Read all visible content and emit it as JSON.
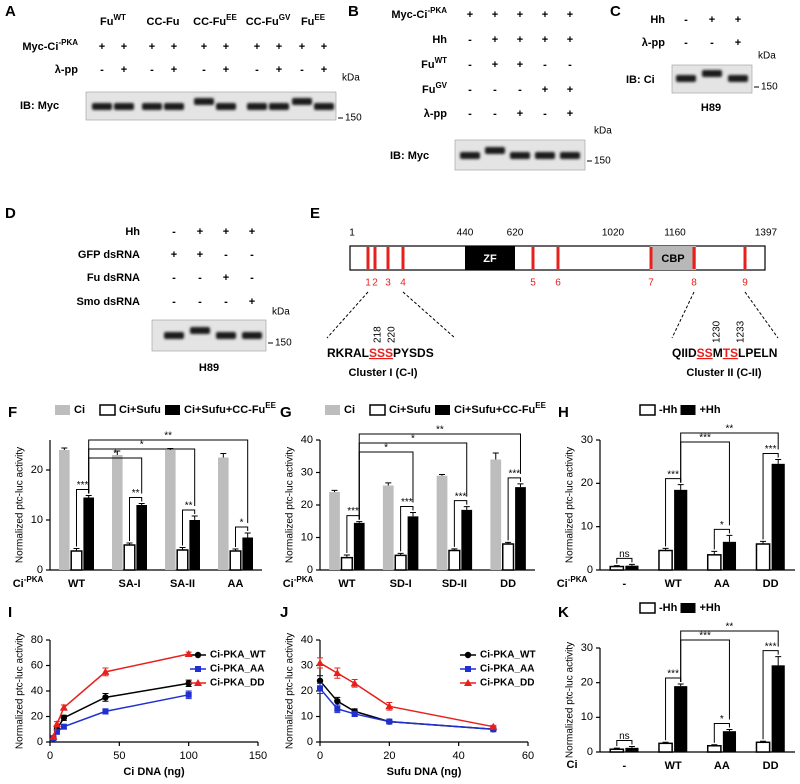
{
  "blots": [
    {
      "panel": "A",
      "columns": [
        {
          "text": "Fu",
          "sup": "WT"
        },
        {
          "text": "CC-Fu"
        },
        {
          "text": "CC-Fu",
          "sup": "EE"
        },
        {
          "text": "CC-Fu",
          "sup": "GV"
        },
        {
          "text": "Fu",
          "sup": "EE"
        }
      ],
      "rows": [
        {
          "text": "Myc-Ci",
          "sup": "-PKA",
          "signs": [
            "+",
            "+",
            "+",
            "+",
            "+",
            "+",
            "+",
            "+",
            "+",
            "+"
          ]
        },
        {
          "text": "λ-pp",
          "signs": [
            "-",
            "+",
            "-",
            "+",
            "-",
            "+",
            "-",
            "+",
            "-",
            "+"
          ]
        }
      ],
      "ib": "IB: Myc",
      "kda": "kDa",
      "marker": 150
    },
    {
      "panel": "B",
      "rows": [
        {
          "text": "Myc-Ci",
          "sup": "-PKA",
          "signs": [
            "+",
            "+",
            "+",
            "+",
            "+"
          ]
        },
        {
          "text": "Hh",
          "signs": [
            "-",
            "+",
            "+",
            "+",
            "+"
          ]
        },
        {
          "text": "Fu",
          "sup": "WT",
          "signs": [
            "-",
            "+",
            "+",
            "-",
            "-"
          ]
        },
        {
          "text": "Fu",
          "sup": "GV",
          "signs": [
            "-",
            "-",
            "-",
            "+",
            "+"
          ]
        },
        {
          "text": "λ-pp",
          "signs": [
            "-",
            "-",
            "+",
            "-",
            "+"
          ]
        }
      ],
      "ib": "IB: Myc",
      "kda": "kDa",
      "marker": 150
    },
    {
      "panel": "C",
      "rows": [
        {
          "text": "Hh",
          "signs": [
            "-",
            "+",
            "+"
          ]
        },
        {
          "text": "λ-pp",
          "signs": [
            "-",
            "-",
            "+"
          ]
        }
      ],
      "ib": "IB: Ci",
      "kda": "kDa",
      "marker": 150,
      "drug": "H89"
    },
    {
      "panel": "D",
      "rows": [
        {
          "text": "Hh",
          "signs": [
            "-",
            "+",
            "+",
            "+"
          ]
        },
        {
          "text": "GFP dsRNA",
          "signs": [
            "+",
            "+",
            "-",
            "-"
          ]
        },
        {
          "text": "Fu dsRNA",
          "signs": [
            "-",
            "-",
            "+",
            "-"
          ]
        },
        {
          "text": "Smo dsRNA",
          "signs": [
            "-",
            "-",
            "-",
            "+"
          ]
        }
      ],
      "kda": "kDa",
      "marker": 150,
      "drug": "H89"
    }
  ],
  "domain_map": {
    "panel": "E",
    "positions": [
      1,
      440,
      620,
      1020,
      1160,
      1397
    ],
    "domains": [
      "ZF",
      "CBP"
    ],
    "sites": [
      "1",
      "2",
      "3",
      "4",
      "5",
      "6",
      "7",
      "8",
      "9"
    ],
    "clusters": [
      {
        "residues": [
          218,
          220
        ],
        "sequence": [
          {
            "text": "RKRAL"
          },
          {
            "text": "SSS",
            "highlight": true
          },
          {
            "text": "PYSDS"
          }
        ],
        "name": "Cluster I (C-I)"
      },
      {
        "residues": [
          1230,
          1233
        ],
        "sequence": [
          {
            "text": "QIID"
          },
          {
            "text": "SS",
            "highlight": true
          },
          {
            "text": "M"
          },
          {
            "text": "TS",
            "highlight": true
          },
          {
            "text": "LPELN"
          }
        ],
        "name": "Cluster II (C-II)"
      }
    ]
  },
  "chart_data": [
    {
      "type": "bar",
      "panel": "F",
      "ylabel": "Normalized ptc-luc activity",
      "category_label": {
        "text": "Ci",
        "sup": "-PKA"
      },
      "categories": [
        "WT",
        "SA-I",
        "SA-II",
        "AA"
      ],
      "series": [
        {
          "name": "Ci",
          "color": "#bdbdbd",
          "values": [
            24,
            23,
            24,
            22.5
          ],
          "errors": [
            0.4,
            0.8,
            0.3,
            0.8
          ]
        },
        {
          "name": "Ci+Sufu",
          "color": "#ffffff",
          "values": [
            3.8,
            5,
            4,
            3.8
          ],
          "errors": [
            0.5,
            0.4,
            0.5,
            0.4
          ]
        },
        {
          "name": "Ci+Sufu+CC-Fu",
          "sup": "EE",
          "color": "#000000",
          "values": [
            14.5,
            13,
            10,
            6.5
          ],
          "errors": [
            0.4,
            0.3,
            0.8,
            0.9
          ]
        }
      ],
      "ylim": [
        0,
        26
      ],
      "yticks": [
        0,
        10,
        20
      ],
      "significance": {
        "within": [
          "***",
          "**",
          "**",
          "*"
        ],
        "between": [
          "*",
          "*",
          "**"
        ]
      }
    },
    {
      "type": "bar",
      "panel": "G",
      "ylabel": "Normalized ptc-luc activity",
      "category_label": {
        "text": "Ci",
        "sup": "-PKA"
      },
      "categories": [
        "WT",
        "SD-I",
        "SD-II",
        "DD"
      ],
      "series": [
        {
          "name": "Ci",
          "color": "#bdbdbd",
          "values": [
            24,
            26,
            29,
            34
          ],
          "errors": [
            0.5,
            0.8,
            0.4,
            2
          ]
        },
        {
          "name": "Ci+Sufu",
          "color": "#ffffff",
          "values": [
            3.8,
            4.5,
            6,
            8
          ],
          "errors": [
            0.8,
            0.6,
            0.5,
            0.5
          ]
        },
        {
          "name": "Ci+Sufu+CC-Fu",
          "sup": "EE",
          "color": "#000000",
          "values": [
            14.5,
            16.5,
            18.5,
            25.5
          ],
          "errors": [
            0.4,
            1.2,
            1,
            1
          ]
        }
      ],
      "ylim": [
        0,
        40
      ],
      "yticks": [
        0,
        10,
        20,
        30,
        40
      ],
      "significance": {
        "within": [
          "***",
          "***",
          "***",
          "***"
        ],
        "between": [
          "*",
          "*",
          "**"
        ]
      }
    },
    {
      "type": "bar",
      "panel": "H",
      "ylabel": "Normalized ptc-luc activity",
      "category_label": {
        "text": "Ci",
        "sup": "-PKA"
      },
      "categories": [
        "-",
        "WT",
        "AA",
        "DD"
      ],
      "series": [
        {
          "name": "-Hh",
          "color": "#ffffff",
          "values": [
            0.8,
            4.5,
            3.5,
            6
          ],
          "errors": [
            0.2,
            0.5,
            0.8,
            0.6
          ]
        },
        {
          "name": "+Hh",
          "color": "#000000",
          "values": [
            1,
            18.5,
            6.5,
            24.5
          ],
          "errors": [
            0.3,
            1.2,
            1.5,
            1
          ]
        }
      ],
      "ylim": [
        0,
        30
      ],
      "yticks": [
        0,
        10,
        20,
        30
      ],
      "significance": {
        "within": [
          "ns",
          "***",
          "*",
          "***"
        ],
        "between": [
          "***",
          "**"
        ]
      }
    },
    {
      "type": "line",
      "panel": "I",
      "ylabel": "Normalized ptc-luc activity",
      "xlabel": "Ci DNA (ng)",
      "x": [
        2.5,
        5,
        10,
        40,
        100
      ],
      "series": [
        {
          "name": "Ci-PKA_WT",
          "color": "#000000",
          "marker": "circle",
          "values": [
            3,
            10,
            19,
            35,
            46
          ],
          "errors": [
            1,
            2,
            2,
            3,
            2.5
          ]
        },
        {
          "name": "Ci-PKA_AA",
          "color": "#1f2fd0",
          "marker": "square",
          "values": [
            3,
            8,
            12,
            24,
            37
          ],
          "errors": [
            1,
            1.5,
            1.5,
            2,
            3
          ]
        },
        {
          "name": "Ci-PKA_DD",
          "color": "#e8201c",
          "marker": "triangle",
          "values": [
            4,
            14,
            27,
            55,
            69
          ],
          "errors": [
            1,
            2,
            2,
            3,
            1.5
          ]
        }
      ],
      "xlim": [
        0,
        150
      ],
      "xticks": [
        0,
        50,
        100,
        150
      ],
      "ylim": [
        0,
        80
      ],
      "yticks": [
        0,
        20,
        40,
        60,
        80
      ]
    },
    {
      "type": "line",
      "panel": "J",
      "ylabel": "Normalized ptc-luc activity",
      "xlabel": "Sufu DNA (ng)",
      "x": [
        0,
        5,
        10,
        20,
        50
      ],
      "series": [
        {
          "name": "Ci-PKA_WT",
          "color": "#000000",
          "marker": "circle",
          "values": [
            24,
            16,
            12,
            8,
            5
          ],
          "errors": [
            2,
            1.5,
            1,
            0.5,
            0.5
          ]
        },
        {
          "name": "Ci-PKA_AA",
          "color": "#1f2fd0",
          "marker": "square",
          "values": [
            21,
            13,
            11,
            8,
            5
          ],
          "errors": [
            2,
            1.5,
            1,
            0.5,
            0.5
          ]
        },
        {
          "name": "Ci-PKA_DD",
          "color": "#e8201c",
          "marker": "triangle",
          "values": [
            31,
            27,
            23,
            14,
            6
          ],
          "errors": [
            2,
            2,
            1.5,
            1.5,
            0.5
          ]
        }
      ],
      "xlim": [
        0,
        60
      ],
      "xticks": [
        0,
        20,
        40,
        60
      ],
      "ylim": [
        0,
        40
      ],
      "yticks": [
        0,
        10,
        20,
        30,
        40
      ]
    },
    {
      "type": "bar",
      "panel": "K",
      "ylabel": "Normalized ptc-luc activity",
      "category_label": {
        "text": "Ci"
      },
      "categories": [
        "-",
        "WT",
        "AA",
        "DD"
      ],
      "series": [
        {
          "name": "-Hh",
          "color": "#ffffff",
          "values": [
            0.8,
            2.5,
            1.8,
            2.8
          ],
          "errors": [
            0.3,
            0.3,
            0.3,
            0.3
          ]
        },
        {
          "name": "+Hh",
          "color": "#000000",
          "values": [
            1.2,
            19,
            6,
            25
          ],
          "errors": [
            0.4,
            0.6,
            0.5,
            2.5
          ]
        }
      ],
      "ylim": [
        0,
        30
      ],
      "yticks": [
        0,
        10,
        20,
        30
      ],
      "significance": {
        "within": [
          "ns",
          "***",
          "*",
          "***"
        ],
        "between": [
          "***",
          "**"
        ]
      }
    }
  ]
}
